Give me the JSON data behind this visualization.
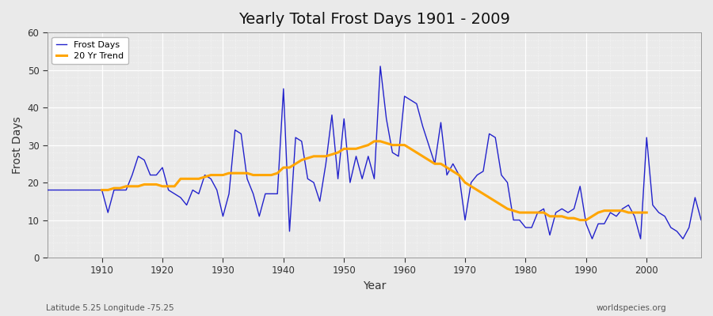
{
  "title": "Yearly Total Frost Days 1901 - 2009",
  "xlabel": "Year",
  "ylabel": "Frost Days",
  "ylim": [
    0,
    60
  ],
  "xlim": [
    1901,
    2009
  ],
  "bg_color": "#e8e8ea",
  "plot_bg_color": "#e8e8ea",
  "frost_color": "#2222cc",
  "trend_color": "#FFA500",
  "legend_labels": [
    "Frost Days",
    "20 Yr Trend"
  ],
  "subtitle_left": "Latitude 5.25 Longitude -75.25",
  "subtitle_right": "worldspecies.org",
  "years": [
    1901,
    1902,
    1903,
    1904,
    1905,
    1906,
    1907,
    1908,
    1909,
    1910,
    1911,
    1912,
    1913,
    1914,
    1915,
    1916,
    1917,
    1918,
    1919,
    1920,
    1921,
    1922,
    1923,
    1924,
    1925,
    1926,
    1927,
    1928,
    1929,
    1930,
    1931,
    1932,
    1933,
    1934,
    1935,
    1936,
    1937,
    1938,
    1939,
    1940,
    1941,
    1942,
    1943,
    1944,
    1945,
    1946,
    1947,
    1948,
    1949,
    1950,
    1951,
    1952,
    1953,
    1954,
    1955,
    1956,
    1957,
    1958,
    1959,
    1960,
    1961,
    1962,
    1963,
    1964,
    1965,
    1966,
    1967,
    1968,
    1969,
    1970,
    1971,
    1972,
    1973,
    1974,
    1975,
    1976,
    1977,
    1978,
    1979,
    1980,
    1981,
    1982,
    1983,
    1984,
    1985,
    1986,
    1987,
    1988,
    1989,
    1990,
    1991,
    1992,
    1993,
    1994,
    1995,
    1996,
    1997,
    1998,
    1999,
    2000,
    2001,
    2002,
    2003,
    2004,
    2005,
    2006,
    2007,
    2008,
    2009
  ],
  "frost_days": [
    18,
    18,
    18,
    18,
    18,
    18,
    18,
    18,
    18,
    18,
    12,
    18,
    18,
    18,
    22,
    27,
    26,
    22,
    22,
    24,
    18,
    17,
    16,
    14,
    18,
    17,
    22,
    21,
    18,
    11,
    17,
    34,
    33,
    21,
    17,
    11,
    17,
    17,
    17,
    45,
    7,
    32,
    31,
    21,
    20,
    15,
    25,
    38,
    21,
    37,
    20,
    27,
    21,
    27,
    21,
    51,
    37,
    28,
    27,
    43,
    42,
    41,
    35,
    30,
    25,
    36,
    22,
    25,
    22,
    10,
    20,
    22,
    23,
    33,
    32,
    22,
    20,
    10,
    10,
    8,
    8,
    12,
    13,
    6,
    12,
    13,
    12,
    13,
    19,
    9,
    5,
    9,
    9,
    12,
    11,
    13,
    14,
    11,
    5,
    32,
    14,
    12,
    11,
    8,
    7,
    5,
    8,
    16,
    10
  ],
  "trend_years": [
    1910,
    1911,
    1912,
    1913,
    1914,
    1915,
    1916,
    1917,
    1918,
    1919,
    1920,
    1921,
    1922,
    1923,
    1924,
    1925,
    1926,
    1927,
    1928,
    1929,
    1930,
    1931,
    1932,
    1933,
    1934,
    1935,
    1936,
    1937,
    1938,
    1939,
    1940,
    1941,
    1942,
    1943,
    1944,
    1945,
    1946,
    1947,
    1948,
    1949,
    1950,
    1951,
    1952,
    1953,
    1954,
    1955,
    1956,
    1957,
    1958,
    1959,
    1960,
    1961,
    1962,
    1963,
    1964,
    1965,
    1966,
    1967,
    1968,
    1969,
    1970,
    1971,
    1972,
    1973,
    1974,
    1975,
    1976,
    1977,
    1978,
    1979,
    1980,
    1981,
    1982,
    1983,
    1984,
    1985,
    1986,
    1987,
    1988,
    1989,
    1990,
    1991,
    1992,
    1993,
    1994,
    1995,
    1996,
    1997,
    1998,
    1999,
    2000
  ],
  "trend_values": [
    18.0,
    18.0,
    18.5,
    18.5,
    19.0,
    19.0,
    19.0,
    19.5,
    19.5,
    19.5,
    19.0,
    19.0,
    19.0,
    21.0,
    21.0,
    21.0,
    21.0,
    21.5,
    22.0,
    22.0,
    22.0,
    22.5,
    22.5,
    22.5,
    22.5,
    22.0,
    22.0,
    22.0,
    22.0,
    22.5,
    24.0,
    24.0,
    25.0,
    26.0,
    26.5,
    27.0,
    27.0,
    27.0,
    27.5,
    28.0,
    29.0,
    29.0,
    29.0,
    29.5,
    30.0,
    31.0,
    31.0,
    30.5,
    30.0,
    30.0,
    30.0,
    29.0,
    28.0,
    27.0,
    26.0,
    25.0,
    25.0,
    24.0,
    23.0,
    22.0,
    20.0,
    19.0,
    18.0,
    17.0,
    16.0,
    15.0,
    14.0,
    13.0,
    12.5,
    12.0,
    12.0,
    12.0,
    12.0,
    12.0,
    11.0,
    11.0,
    11.0,
    10.5,
    10.5,
    10.0,
    10.0,
    11.0,
    12.0,
    12.5,
    12.5,
    12.5,
    12.5,
    12.0,
    12.0,
    12.0,
    12.0
  ]
}
